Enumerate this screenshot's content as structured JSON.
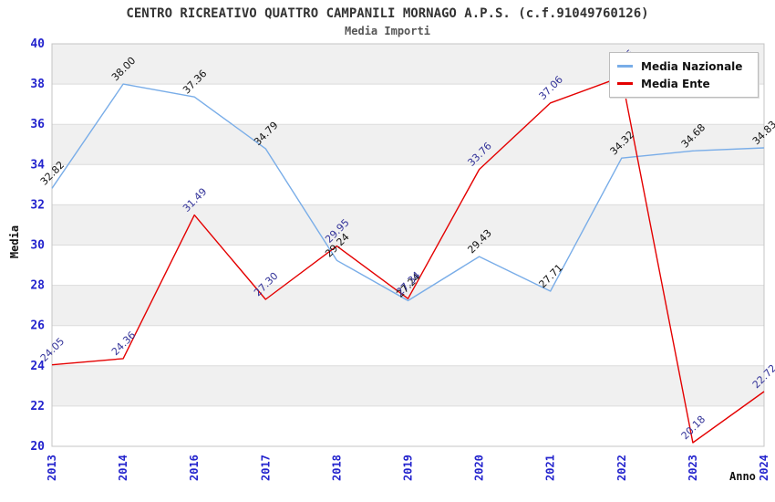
{
  "header": {
    "title": "CENTRO RICREATIVO QUATTRO CAMPANILI MORNAGO A.P.S. (c.f.91049760126)",
    "subtitle": "Media Importi"
  },
  "axes": {
    "y_title": "Media",
    "x_title": "Anno",
    "y_ticks": [
      40,
      38,
      36,
      34,
      32,
      30,
      28,
      26,
      24,
      22,
      20
    ]
  },
  "legend": {
    "items": [
      {
        "label": "Media Nazionale",
        "color": "#79ADE8"
      },
      {
        "label": "Media Ente",
        "color": "#E40000"
      }
    ]
  },
  "styles": {
    "tick_color": "#2323CD",
    "data_label_blue": "#333399",
    "data_label_black": "#111111",
    "band_color": "#F0F0F0",
    "grid_color": "#DCDCDC",
    "plot_border_color": "#C4C4C4"
  },
  "chart_data": {
    "type": "line",
    "title": "CENTRO RICREATIVO QUATTRO CAMPANILI MORNAGO A.P.S. (c.f.91049760126)",
    "subtitle": "Media Importi",
    "xlabel": "Anno",
    "ylabel": "Media",
    "ylim": [
      20,
      40
    ],
    "ytick_step": 2,
    "grid": true,
    "band_alternate": true,
    "legend_position": "top-right",
    "categories": [
      "2013",
      "2014",
      "2016",
      "2017",
      "2018",
      "2019",
      "2020",
      "2021",
      "2022",
      "2023",
      "2024"
    ],
    "series": [
      {
        "name": "Media Nazionale",
        "color": "#79ADE8",
        "label_color": "#111111",
        "values": [
          32.82,
          38.0,
          37.36,
          34.79,
          29.24,
          27.24,
          29.43,
          27.71,
          34.32,
          34.68,
          34.83
        ]
      },
      {
        "name": "Media Ente",
        "color": "#E40000",
        "label_color": "#333399",
        "values": [
          24.05,
          24.36,
          31.49,
          27.3,
          29.95,
          27.34,
          33.76,
          37.06,
          38.36,
          20.18,
          22.72
        ]
      }
    ]
  }
}
